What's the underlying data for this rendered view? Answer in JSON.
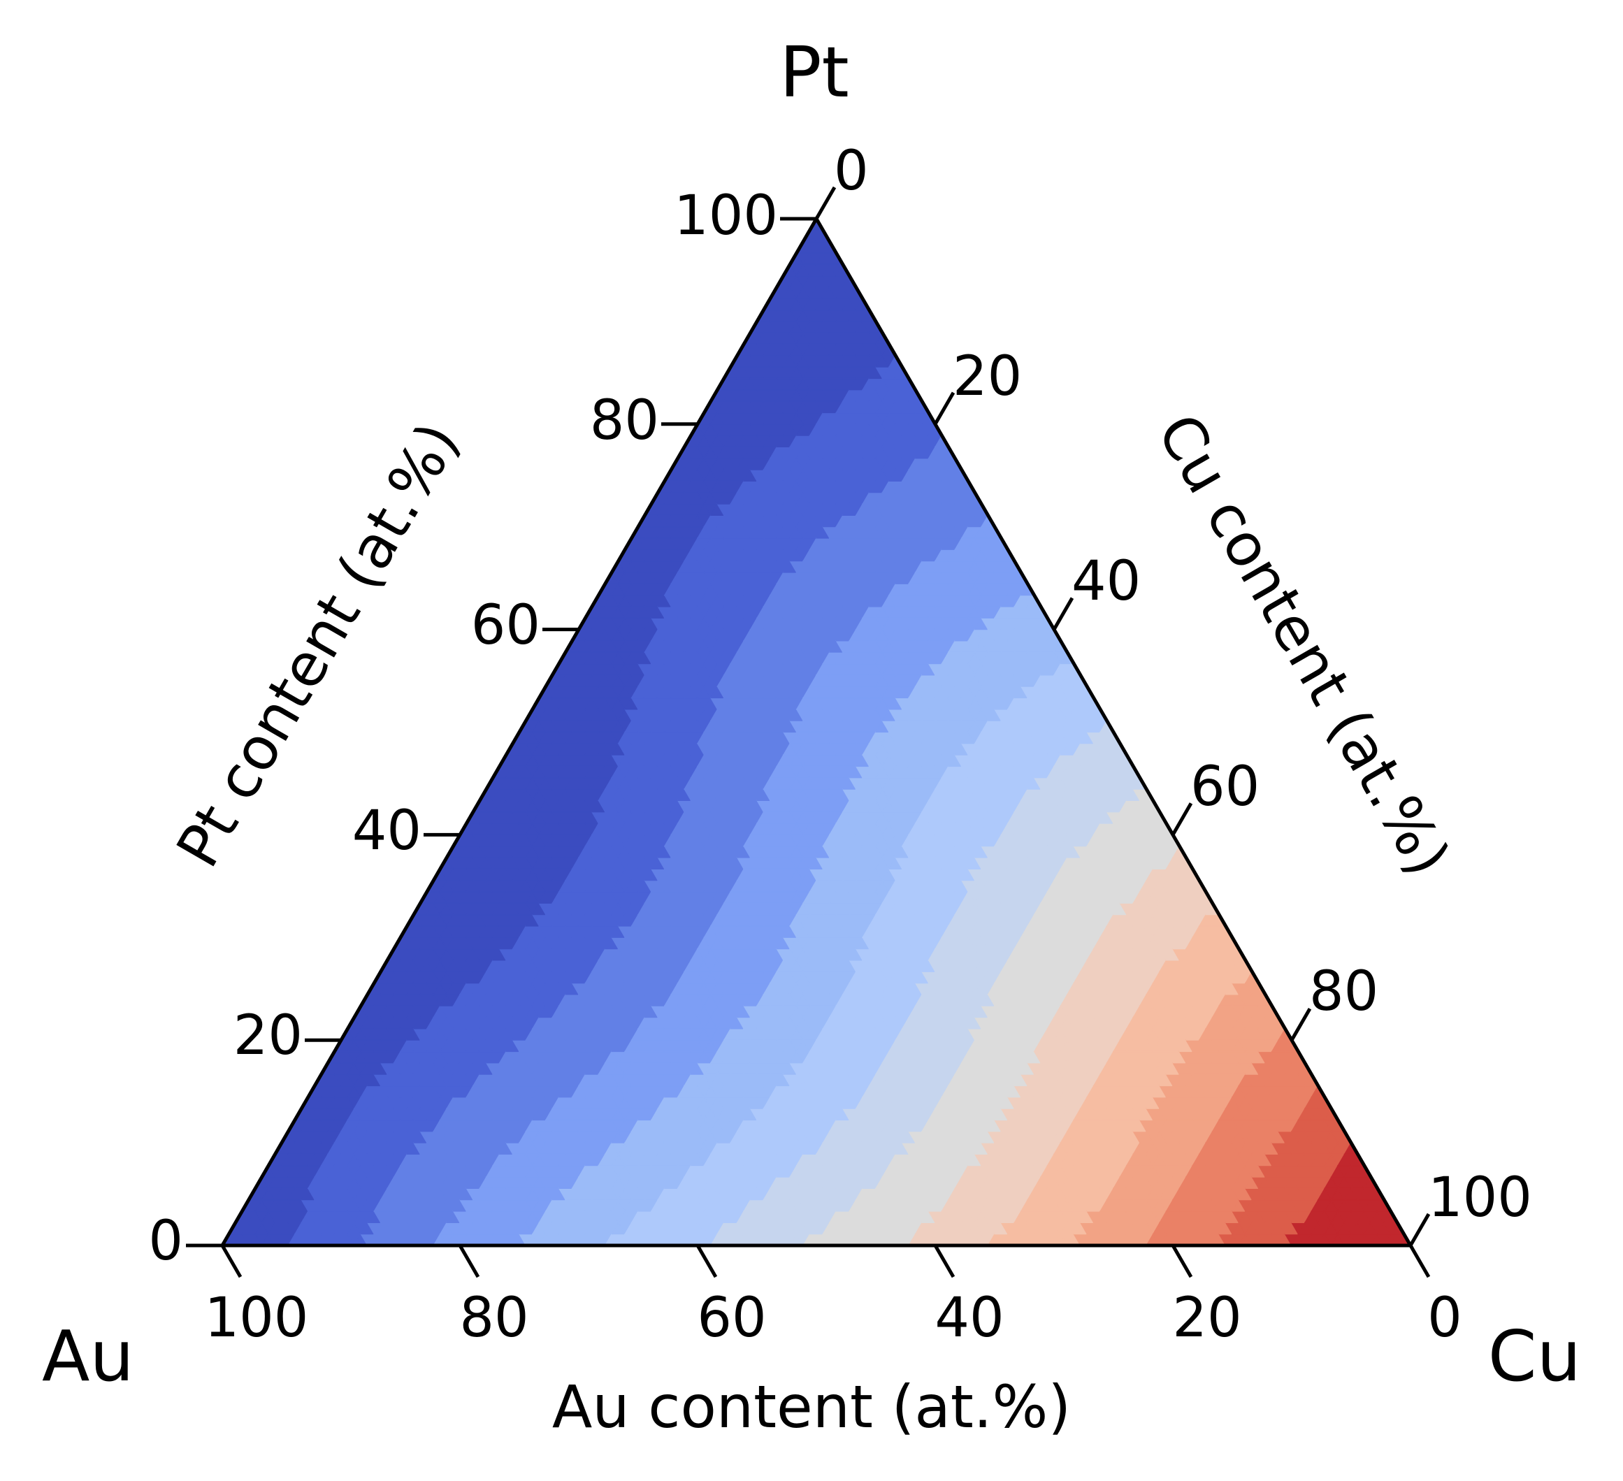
{
  "chart_data": {
    "type": "ternary-contour",
    "vertices": {
      "left": "Au",
      "top": "Pt",
      "right": "Cu"
    },
    "axes": {
      "left": {
        "label": "Pt content (at.%)",
        "ticks": [
          "0",
          "20",
          "40",
          "60",
          "80",
          "100"
        ]
      },
      "right": {
        "label": "Cu content (at.%)",
        "ticks": [
          "0",
          "20",
          "40",
          "60",
          "80",
          "100"
        ]
      },
      "bottom": {
        "label": "Au content (at.%)",
        "ticks": [
          "100",
          "80",
          "60",
          "40",
          "20",
          "0"
        ]
      }
    },
    "contour_levels": 12,
    "colormap": [
      "#3b4cc0",
      "#4a62d6",
      "#6280e6",
      "#7d9ef5",
      "#9bbbf8",
      "#aec9fb",
      "#c6d5ee",
      "#dcdcdc",
      "#efcfc0",
      "#f6bda2",
      "#f2a385",
      "#ea8166",
      "#dc5d4a",
      "#c1272d"
    ],
    "grid": false,
    "legend": "none"
  }
}
